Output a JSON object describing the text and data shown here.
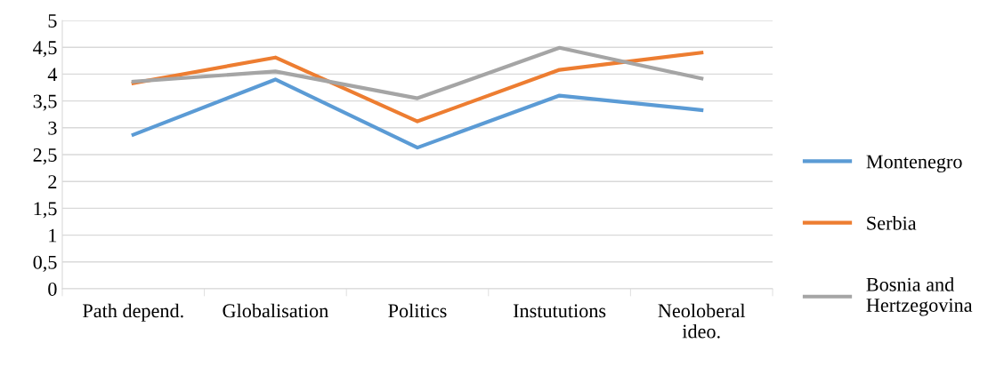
{
  "chart_data": {
    "type": "line",
    "categories": [
      "Path depend.",
      "Globalisation",
      "Politics",
      "Instututions",
      "Neoloberal\nideo."
    ],
    "series": [
      {
        "name": "Montenegro",
        "color": "#5b9bd5",
        "values": [
          2.87,
          3.9,
          2.63,
          3.6,
          3.33
        ]
      },
      {
        "name": "Serbia",
        "color": "#ed7d31",
        "values": [
          3.83,
          4.31,
          3.12,
          4.08,
          4.4
        ]
      },
      {
        "name": "Bosnia and\nHertzegovina",
        "color": "#a5a5a5",
        "values": [
          3.86,
          4.05,
          3.55,
          4.49,
          3.92
        ]
      }
    ],
    "ylim": [
      0,
      5
    ],
    "yticks": [
      0,
      {
        "value": 0.5,
        "label": "0,5"
      },
      1,
      {
        "value": 1.5,
        "label": "1,5"
      },
      2,
      {
        "value": 2.5,
        "label": "2,5"
      },
      3,
      {
        "value": 3.5,
        "label": "3,5"
      },
      4,
      {
        "value": 4.5,
        "label": "4,5"
      },
      5
    ],
    "grid": "y",
    "legend": "right",
    "marker": "none",
    "line_style": "solid"
  }
}
